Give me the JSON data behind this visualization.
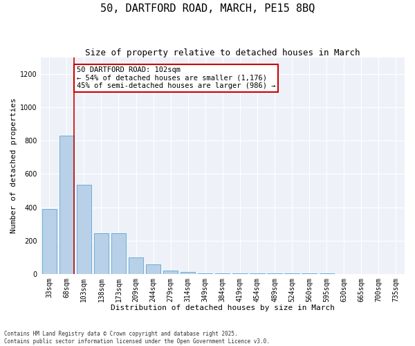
{
  "title": "50, DARTFORD ROAD, MARCH, PE15 8BQ",
  "subtitle": "Size of property relative to detached houses in March",
  "xlabel": "Distribution of detached houses by size in March",
  "ylabel": "Number of detached properties",
  "categories": [
    "33sqm",
    "68sqm",
    "103sqm",
    "138sqm",
    "173sqm",
    "209sqm",
    "244sqm",
    "279sqm",
    "314sqm",
    "349sqm",
    "384sqm",
    "419sqm",
    "454sqm",
    "489sqm",
    "524sqm",
    "560sqm",
    "595sqm",
    "630sqm",
    "665sqm",
    "700sqm",
    "735sqm"
  ],
  "values": [
    390,
    830,
    535,
    245,
    245,
    100,
    55,
    18,
    10,
    5,
    4,
    3,
    2,
    2,
    1,
    1,
    1,
    0,
    0,
    0,
    0
  ],
  "bar_color": "#b8d0e8",
  "bar_edge_color": "#6baed6",
  "vline_color": "#cc0000",
  "annotation_text": "50 DARTFORD ROAD: 102sqm\n← 54% of detached houses are smaller (1,176)\n45% of semi-detached houses are larger (986) →",
  "ylim": [
    0,
    1300
  ],
  "yticks": [
    0,
    200,
    400,
    600,
    800,
    1000,
    1200
  ],
  "bg_color": "#eef2f8",
  "grid_color": "#ffffff",
  "footer": "Contains HM Land Registry data © Crown copyright and database right 2025.\nContains public sector information licensed under the Open Government Licence v3.0.",
  "title_fontsize": 11,
  "subtitle_fontsize": 9,
  "axis_label_fontsize": 8,
  "tick_fontsize": 7,
  "ann_fontsize": 7.5
}
